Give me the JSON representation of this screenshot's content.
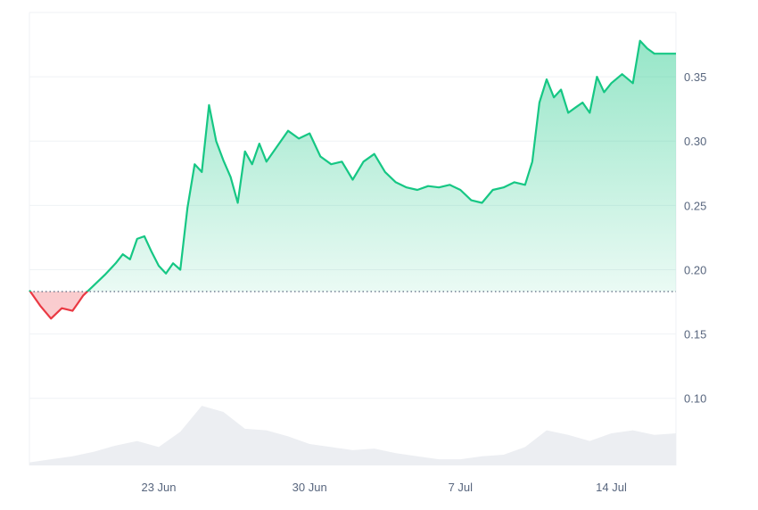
{
  "chart_data": {
    "type": "area",
    "title": "",
    "xlabel": "",
    "ylabel": "",
    "x_axis": {
      "ticks": [
        {
          "label": "23 Jun",
          "day": 23,
          "month": 6
        },
        {
          "label": "30 Jun",
          "day": 30,
          "month": 6
        },
        {
          "label": "7 Jul",
          "day": 7,
          "month": 7
        },
        {
          "label": "14 Jul",
          "day": 14,
          "month": 7
        }
      ],
      "start": "2024-06-17",
      "end": "2024-07-17"
    },
    "y_axis": {
      "ticks": [
        {
          "value": 0.1,
          "label": "0.10"
        },
        {
          "value": 0.15,
          "label": "0.15"
        },
        {
          "value": 0.2,
          "label": "0.20"
        },
        {
          "value": 0.25,
          "label": "0.25"
        },
        {
          "value": 0.3,
          "label": "0.30"
        },
        {
          "value": 0.35,
          "label": "0.35"
        }
      ],
      "position": "right"
    },
    "baseline": 0.183,
    "colors": {
      "up_line": "#16c784",
      "down_line": "#ea3943",
      "up_fill": "#16c784",
      "down_fill": "#ea3943",
      "volume_fill": "#eceef2",
      "grid": "#eff2f5",
      "baseline": "#58667e"
    },
    "series": [
      {
        "values": [
          [
            "2024-06-17",
            0.184
          ],
          [
            "2024-06-17T12",
            0.172
          ],
          [
            "2024-06-18",
            0.162
          ],
          [
            "2024-06-18T12",
            0.17
          ],
          [
            "2024-06-19",
            0.168
          ],
          [
            "2024-06-19T06",
            0.174
          ],
          [
            "2024-06-19T12",
            0.18
          ],
          [
            "2024-06-20",
            0.188
          ],
          [
            "2024-06-20T12",
            0.196
          ],
          [
            "2024-06-21",
            0.205
          ],
          [
            "2024-06-21T08",
            0.212
          ],
          [
            "2024-06-21T16",
            0.208
          ],
          [
            "2024-06-22",
            0.224
          ],
          [
            "2024-06-22T08",
            0.226
          ],
          [
            "2024-06-22T16",
            0.214
          ],
          [
            "2024-06-23",
            0.203
          ],
          [
            "2024-06-23T08",
            0.197
          ],
          [
            "2024-06-23T16",
            0.205
          ],
          [
            "2024-06-24",
            0.2
          ],
          [
            "2024-06-24T08",
            0.248
          ],
          [
            "2024-06-24T16",
            0.282
          ],
          [
            "2024-06-25",
            0.276
          ],
          [
            "2024-06-25T08",
            0.328
          ],
          [
            "2024-06-25T16",
            0.3
          ],
          [
            "2024-06-26",
            0.285
          ],
          [
            "2024-06-26T08",
            0.272
          ],
          [
            "2024-06-26T16",
            0.252
          ],
          [
            "2024-06-27",
            0.292
          ],
          [
            "2024-06-27T08",
            0.282
          ],
          [
            "2024-06-27T16",
            0.298
          ],
          [
            "2024-06-28",
            0.284
          ],
          [
            "2024-06-28T12",
            0.296
          ],
          [
            "2024-06-29",
            0.308
          ],
          [
            "2024-06-29T12",
            0.302
          ],
          [
            "2024-06-30",
            0.306
          ],
          [
            "2024-06-30T12",
            0.288
          ],
          [
            "2024-07-01",
            0.282
          ],
          [
            "2024-07-01T12",
            0.284
          ],
          [
            "2024-07-02",
            0.27
          ],
          [
            "2024-07-02T12",
            0.284
          ],
          [
            "2024-07-03",
            0.29
          ],
          [
            "2024-07-03T12",
            0.276
          ],
          [
            "2024-07-04",
            0.268
          ],
          [
            "2024-07-04T12",
            0.264
          ],
          [
            "2024-07-05",
            0.262
          ],
          [
            "2024-07-05T12",
            0.265
          ],
          [
            "2024-07-06",
            0.264
          ],
          [
            "2024-07-06T12",
            0.266
          ],
          [
            "2024-07-07",
            0.262
          ],
          [
            "2024-07-07T12",
            0.254
          ],
          [
            "2024-07-08",
            0.252
          ],
          [
            "2024-07-08T12",
            0.262
          ],
          [
            "2024-07-09",
            0.264
          ],
          [
            "2024-07-09T12",
            0.268
          ],
          [
            "2024-07-10",
            0.266
          ],
          [
            "2024-07-10T08",
            0.284
          ],
          [
            "2024-07-10T16",
            0.33
          ],
          [
            "2024-07-11",
            0.348
          ],
          [
            "2024-07-11T08",
            0.334
          ],
          [
            "2024-07-11T16",
            0.34
          ],
          [
            "2024-07-12",
            0.322
          ],
          [
            "2024-07-12T08",
            0.326
          ],
          [
            "2024-07-12T16",
            0.33
          ],
          [
            "2024-07-13",
            0.322
          ],
          [
            "2024-07-13T08",
            0.35
          ],
          [
            "2024-07-13T16",
            0.338
          ],
          [
            "2024-07-14",
            0.345
          ],
          [
            "2024-07-14T12",
            0.352
          ],
          [
            "2024-07-15",
            0.345
          ],
          [
            "2024-07-15T08",
            0.378
          ],
          [
            "2024-07-15T16",
            0.372
          ],
          [
            "2024-07-16",
            0.368
          ],
          [
            "2024-07-17",
            0.368
          ]
        ]
      }
    ],
    "volume": [
      [
        "2024-06-17",
        0.2
      ],
      [
        "2024-06-18",
        0.4
      ],
      [
        "2024-06-19",
        0.6
      ],
      [
        "2024-06-20",
        0.9
      ],
      [
        "2024-06-21",
        1.3
      ],
      [
        "2024-06-22",
        1.6
      ],
      [
        "2024-06-23",
        1.2
      ],
      [
        "2024-06-24",
        2.2
      ],
      [
        "2024-06-25",
        3.9
      ],
      [
        "2024-06-26",
        3.5
      ],
      [
        "2024-06-27",
        2.4
      ],
      [
        "2024-06-28",
        2.3
      ],
      [
        "2024-06-29",
        1.9
      ],
      [
        "2024-06-30",
        1.4
      ],
      [
        "2024-07-01",
        1.2
      ],
      [
        "2024-07-02",
        1.0
      ],
      [
        "2024-07-03",
        1.1
      ],
      [
        "2024-07-04",
        0.8
      ],
      [
        "2024-07-05",
        0.6
      ],
      [
        "2024-07-06",
        0.4
      ],
      [
        "2024-07-07",
        0.4
      ],
      [
        "2024-07-08",
        0.6
      ],
      [
        "2024-07-09",
        0.7
      ],
      [
        "2024-07-10",
        1.2
      ],
      [
        "2024-07-11",
        2.3
      ],
      [
        "2024-07-12",
        2.0
      ],
      [
        "2024-07-13",
        1.6
      ],
      [
        "2024-07-14",
        2.1
      ],
      [
        "2024-07-15",
        2.3
      ],
      [
        "2024-07-16",
        2.0
      ],
      [
        "2024-07-17",
        2.1
      ]
    ]
  }
}
